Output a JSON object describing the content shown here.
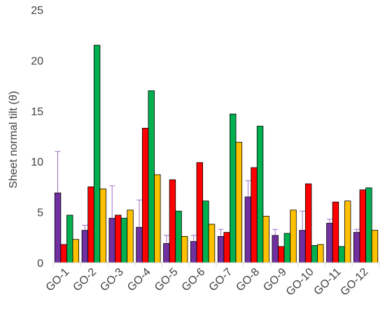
{
  "chart_data": {
    "type": "bar",
    "title": "",
    "xlabel": "",
    "ylabel": "Sheet normal tilt (θ)",
    "ylim": [
      0,
      25
    ],
    "yticks": [
      0,
      5,
      10,
      15,
      20,
      25
    ],
    "grid": false,
    "legend": "none",
    "categories": [
      "GO-1",
      "GO-2",
      "GO-3",
      "GO-4",
      "GO-5",
      "GO-6",
      "GO-7",
      "GO-8",
      "GO-9",
      "GO-10",
      "GO-11",
      "GO-12"
    ],
    "series": [
      {
        "color": "#7030a0",
        "values": [
          6.9,
          3.2,
          4.4,
          3.5,
          1.9,
          2.1,
          2.6,
          6.5,
          2.7,
          3.2,
          3.9,
          3.0
        ],
        "error_upper": [
          11.0,
          3.7,
          7.6,
          6.2,
          2.7,
          2.7,
          3.3,
          8.1,
          3.3,
          5.1,
          4.3,
          3.3
        ]
      },
      {
        "color": "#ff0000",
        "values": [
          1.8,
          7.5,
          4.7,
          13.3,
          8.2,
          9.9,
          3.0,
          9.4,
          1.6,
          7.8,
          6.0,
          7.2
        ]
      },
      {
        "color": "#00b050",
        "values": [
          4.7,
          21.5,
          4.4,
          17.0,
          5.1,
          6.1,
          14.7,
          13.5,
          2.9,
          1.7,
          1.6,
          7.4
        ]
      },
      {
        "color": "#ffc000",
        "values": [
          2.3,
          7.3,
          5.2,
          8.7,
          2.6,
          3.8,
          11.9,
          4.6,
          5.2,
          1.8,
          6.1,
          3.2
        ]
      }
    ],
    "error_bar_color": "#a070c8",
    "axis_color": "#d9d9d9"
  }
}
